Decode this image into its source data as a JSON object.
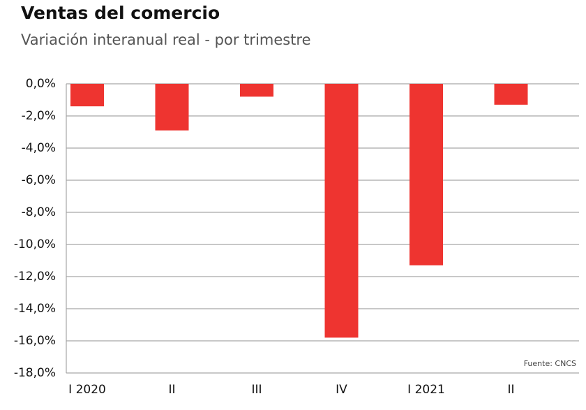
{
  "chart_data": {
    "type": "bar",
    "title": "Ventas del comercio",
    "subtitle": "Variación interanual real - por trimestre",
    "source": "Fuente: CNCS",
    "categories": [
      "I 2020",
      "II",
      "III",
      "IV",
      "I 2021",
      "II"
    ],
    "values": [
      -1.4,
      -2.9,
      -0.8,
      -15.8,
      -11.3,
      -1.3
    ],
    "color": "#ee3430",
    "ylim": [
      -18,
      0
    ],
    "yticks": [
      {
        "value": 0,
        "label": "0,0%"
      },
      {
        "value": -2,
        "label": "-2,0%"
      },
      {
        "value": -4,
        "label": "-4,0%"
      },
      {
        "value": -6,
        "label": "-6,0%"
      },
      {
        "value": -8,
        "label": "-8,0%"
      },
      {
        "value": -10,
        "label": "-10,0%"
      },
      {
        "value": -12,
        "label": "-12,0%"
      },
      {
        "value": -14,
        "label": "-14,0%"
      },
      {
        "value": -16,
        "label": "-16,0%"
      },
      {
        "value": -18,
        "label": "-18,0%"
      }
    ],
    "grid": true
  }
}
